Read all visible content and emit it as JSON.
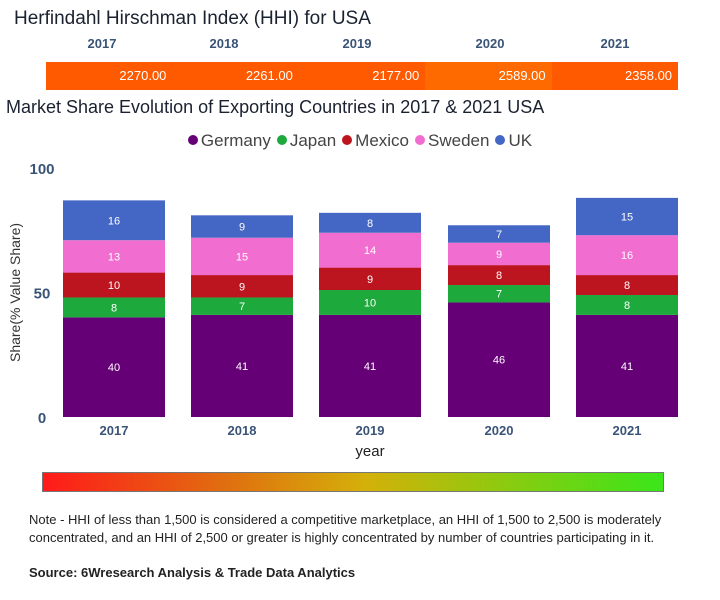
{
  "hhi": {
    "title": "Herfindahl Hirschman Index (HHI) for USA",
    "years": [
      "2017",
      "2018",
      "2019",
      "2020",
      "2021"
    ],
    "values": [
      "2270.00",
      "2261.00",
      "2177.00",
      "2589.00",
      "2358.00"
    ],
    "cell_colors": [
      "#ff5a00",
      "#ff5a00",
      "#ff5a00",
      "#ff6a00",
      "#ff5a00"
    ]
  },
  "chart_data": {
    "type": "bar",
    "stacked": true,
    "title": "Market Share Evolution of Exporting Countries in 2017 & 2021 USA",
    "xlabel": "year",
    "ylabel": "Share(% Value Share)",
    "ylim": [
      0,
      100
    ],
    "yticks": [
      "0",
      "50",
      "100"
    ],
    "categories": [
      "2017",
      "2018",
      "2019",
      "2020",
      "2021"
    ],
    "legend_position": "top-center",
    "series": [
      {
        "name": "Germany",
        "color": "#660077",
        "values": [
          40,
          41,
          41,
          46,
          41
        ]
      },
      {
        "name": "Japan",
        "color": "#1ea93c",
        "values": [
          8,
          7,
          10,
          7,
          8
        ]
      },
      {
        "name": "Mexico",
        "color": "#bd1520",
        "values": [
          10,
          9,
          9,
          8,
          8
        ]
      },
      {
        "name": "Sweden",
        "color": "#f26dd0",
        "values": [
          13,
          15,
          14,
          9,
          16
        ]
      },
      {
        "name": "UK",
        "color": "#4466c4",
        "values": [
          16,
          9,
          8,
          7,
          15
        ]
      }
    ]
  },
  "scale": {
    "low_color": "#ff1a1a",
    "high_color": "#3ae61a"
  },
  "note": "Note - HHI of less than 1,500 is considered a competitive marketplace, an HHI of 1,500 to 2,500 is moderately concentrated, and an HHI of 2,500 or greater is highly concentrated by number of countries participating in it.",
  "source": "Source: 6Wresearch Analysis & Trade Data Analytics"
}
